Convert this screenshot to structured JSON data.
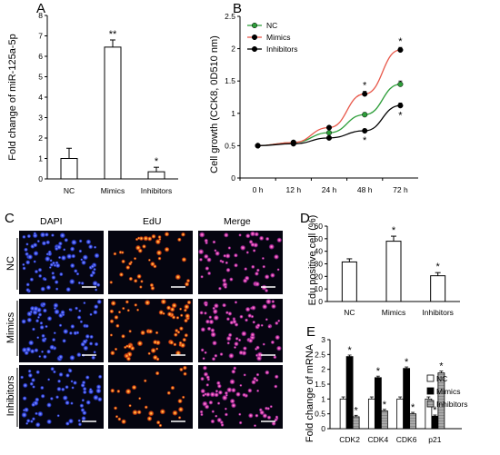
{
  "panels": {
    "A": {
      "letter": "A"
    },
    "B": {
      "letter": "B"
    },
    "C": {
      "letter": "C",
      "columns": [
        "DAPI",
        "EdU",
        "Merge"
      ],
      "rows": [
        "NC",
        "Mimics",
        "Inhibitors"
      ]
    },
    "D": {
      "letter": "D"
    },
    "E": {
      "letter": "E"
    }
  },
  "colors": {
    "nc_line": "#2e9e3a",
    "mimics_line": "#e8584a",
    "inhibitors_line": "#000000",
    "dapi": "#2b3fd6",
    "edu": "#ff4a1a",
    "merge": "#d23aa0",
    "mimics_bar": "#000000",
    "inhibitors_bar": "#a9a9a9",
    "nc_bar": "#ffffff"
  },
  "chart_data": [
    {
      "id": "A",
      "type": "bar",
      "ylabel": "Fold change of miR-125a-5p",
      "categories": [
        "NC",
        "Mimics",
        "Inhibitors"
      ],
      "values": [
        1.0,
        6.45,
        0.35
      ],
      "errors": [
        0.5,
        0.35,
        0.22
      ],
      "significance": [
        "",
        "**",
        "*"
      ],
      "yticks": [
        0,
        1,
        2,
        3,
        4,
        5,
        6,
        7,
        8
      ],
      "ylim": [
        0,
        8
      ]
    },
    {
      "id": "B",
      "type": "line",
      "ylabel": "Cell growth (CCK8, 0D510 nm)",
      "x": [
        "0 h",
        "12 h",
        "24 h",
        "48 h",
        "72 h"
      ],
      "series": [
        {
          "name": "NC",
          "values": [
            0.5,
            0.55,
            0.7,
            0.98,
            1.45
          ],
          "errors": [
            0,
            0.02,
            0.02,
            0.03,
            0.05
          ],
          "significance": [
            "",
            "",
            "",
            "",
            ""
          ]
        },
        {
          "name": "Mimics",
          "values": [
            0.5,
            0.55,
            0.78,
            1.3,
            1.98
          ],
          "errors": [
            0,
            0.02,
            0.02,
            0.04,
            0.04
          ],
          "significance": [
            "",
            "",
            "",
            "*",
            "*"
          ]
        },
        {
          "name": "Inhibitors",
          "values": [
            0.5,
            0.53,
            0.62,
            0.73,
            1.12
          ],
          "errors": [
            0,
            0.02,
            0.02,
            0.03,
            0.04
          ],
          "significance": [
            "",
            "",
            "",
            "*",
            "*"
          ]
        }
      ],
      "yticks": [
        0,
        0.5,
        1,
        1.5,
        2,
        2.5
      ],
      "ylim": [
        0,
        2.5
      ],
      "legend": "top-left"
    },
    {
      "id": "D",
      "type": "bar",
      "ylabel": "Edu positive cell (%)",
      "categories": [
        "NC",
        "Mimics",
        "Inhibitors"
      ],
      "values": [
        31.5,
        48,
        20.5
      ],
      "errors": [
        2.5,
        4,
        2.5
      ],
      "significance": [
        "",
        "*",
        "*"
      ],
      "yticks": [
        0,
        10,
        20,
        30,
        40,
        50,
        60
      ],
      "ylim": [
        0,
        60
      ]
    },
    {
      "id": "E",
      "type": "bar",
      "ylabel": "Fold change of mRNA",
      "categories": [
        "CDK2",
        "CDK4",
        "CDK6",
        "p21"
      ],
      "series": [
        {
          "name": "NC",
          "values": [
            1.0,
            1.0,
            1.0,
            1.0
          ],
          "errors": [
            0.07,
            0.07,
            0.07,
            0.07
          ],
          "significance": [
            "",
            "",
            "",
            ""
          ]
        },
        {
          "name": "Mimics",
          "values": [
            2.43,
            1.72,
            2.03,
            0.42
          ],
          "errors": [
            0.05,
            0.05,
            0.05,
            0.04
          ],
          "significance": [
            "*",
            "*",
            "*",
            "*"
          ]
        },
        {
          "name": "Inhibitors",
          "values": [
            0.4,
            0.6,
            0.5,
            1.88
          ],
          "errors": [
            0.05,
            0.05,
            0.05,
            0.06
          ],
          "significance": [
            "*",
            "*",
            "*",
            "*"
          ]
        }
      ],
      "yticks": [
        0,
        0.5,
        1,
        1.5,
        2,
        2.5,
        3
      ],
      "ylim": [
        0,
        3
      ],
      "legend": "right"
    }
  ]
}
